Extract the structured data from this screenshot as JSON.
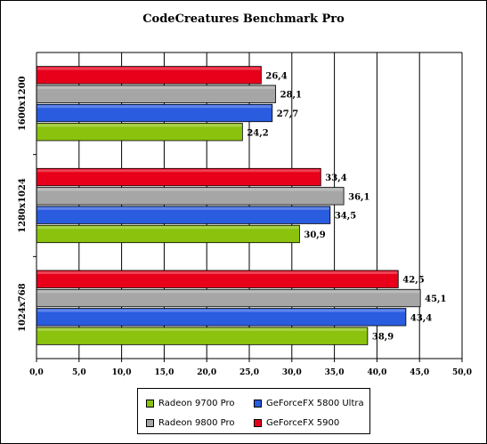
{
  "chart_data": {
    "type": "bar",
    "orientation": "horizontal",
    "title": "CodeCreatures Benchmark Pro",
    "categories": [
      "1600x1200",
      "1280x1024",
      "1024x768"
    ],
    "series": [
      {
        "name": "GeForceFX 5900",
        "color": "#e8001a",
        "values": [
          26.4,
          33.4,
          42.5
        ]
      },
      {
        "name": "Radeon 9800 Pro",
        "color": "#a6a6a6",
        "values": [
          28.1,
          36.1,
          45.1
        ]
      },
      {
        "name": "GeForceFX 5800 Ultra",
        "color": "#2a5ce0",
        "values": [
          27.7,
          34.5,
          43.4
        ]
      },
      {
        "name": "Radeon 9700 Pro",
        "color": "#8bc20d",
        "values": [
          24.2,
          30.9,
          38.9
        ]
      }
    ],
    "xlim": [
      0,
      50
    ],
    "xticks": [
      "0,0",
      "5,0",
      "10,0",
      "15,0",
      "20,0",
      "25,0",
      "30,0",
      "35,0",
      "40,0",
      "45,0",
      "50,0"
    ],
    "value_labels": [
      [
        "26,4",
        "28,1",
        "27,7",
        "24,2"
      ],
      [
        "33,4",
        "36,1",
        "34,5",
        "30,9"
      ],
      [
        "42,5",
        "45,1",
        "43,4",
        "38,9"
      ]
    ],
    "grid": true,
    "legend": {
      "position": "bottom",
      "items": [
        {
          "label": "Radeon 9700 Pro",
          "color": "#8bc20d"
        },
        {
          "label": "GeForceFX 5800 Ultra",
          "color": "#2a5ce0"
        },
        {
          "label": "Radeon 9800 Pro",
          "color": "#a6a6a6"
        },
        {
          "label": "GeForceFX 5900",
          "color": "#e8001a"
        }
      ]
    }
  }
}
